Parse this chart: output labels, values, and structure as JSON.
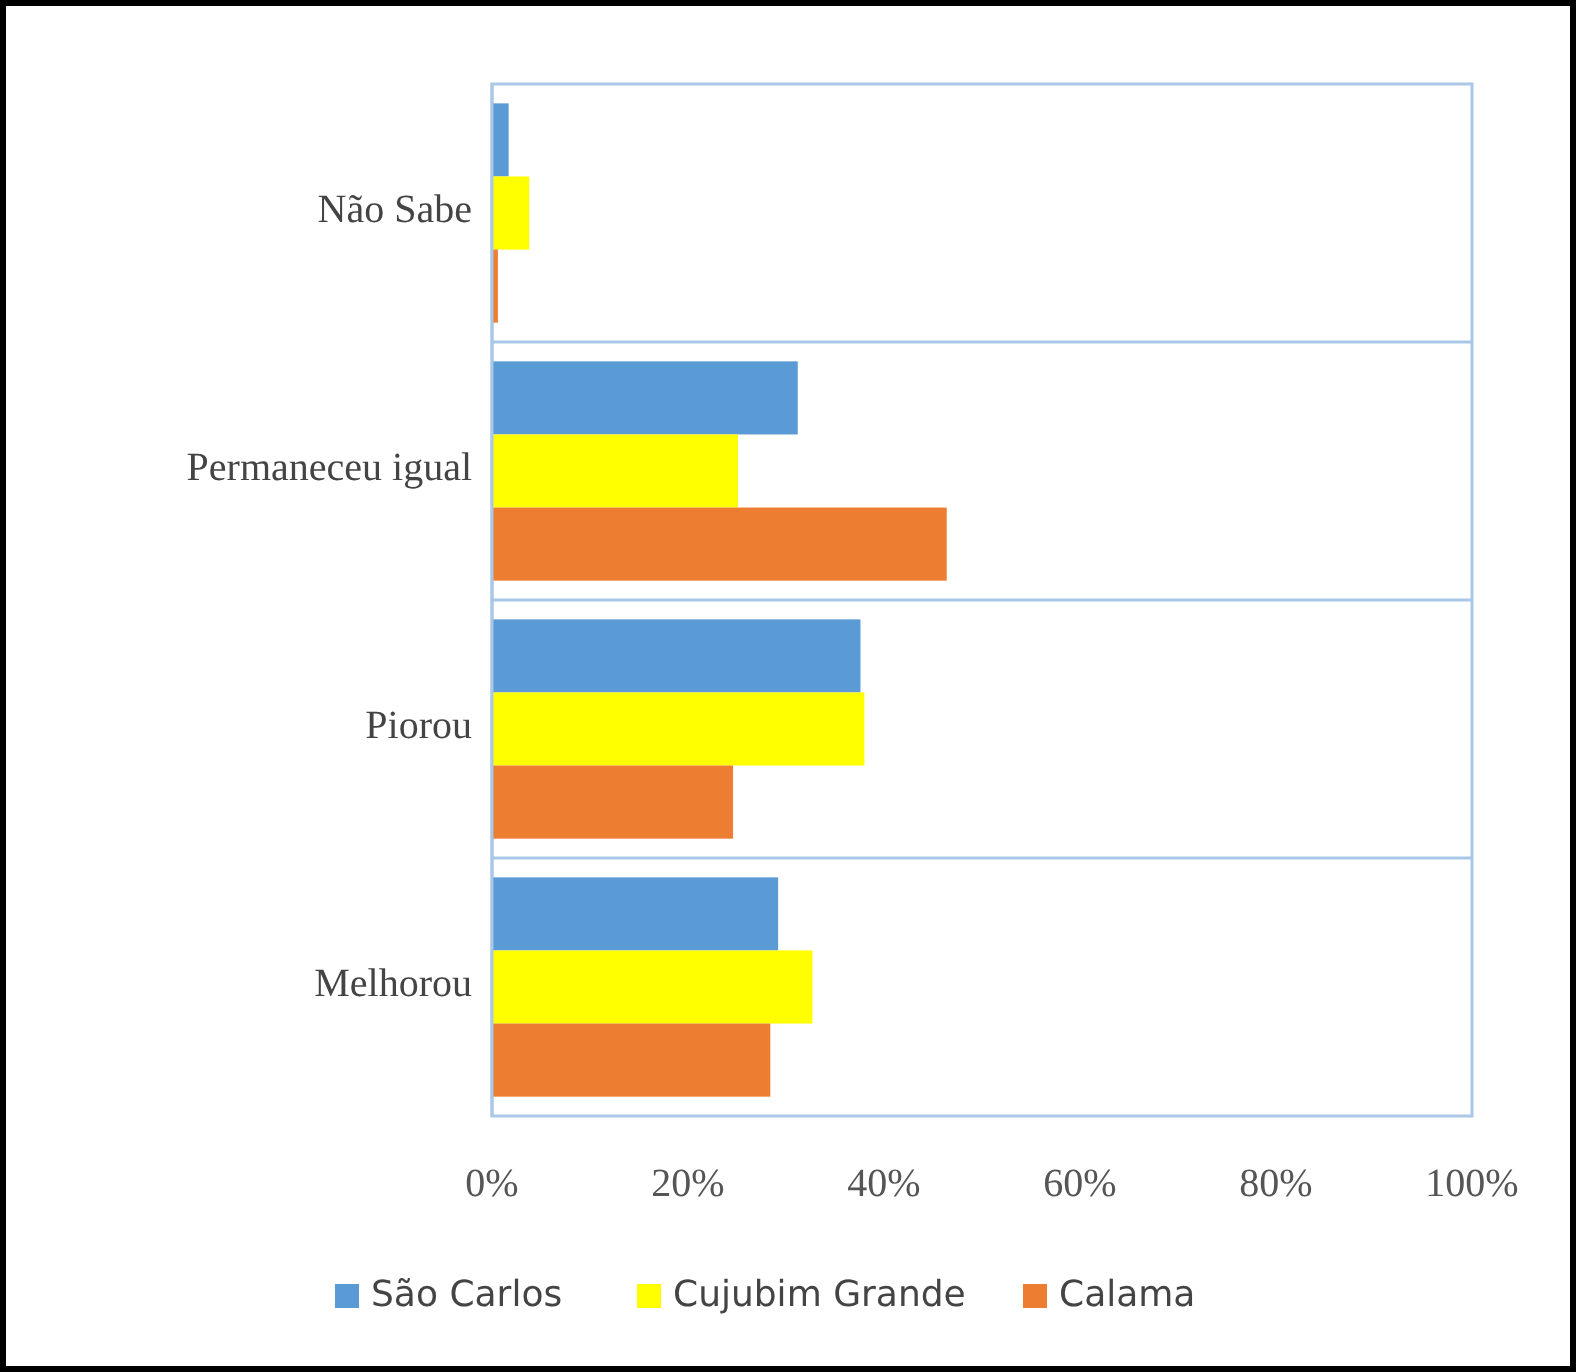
{
  "chart_data": {
    "type": "bar",
    "orientation": "horizontal",
    "categories": [
      "Não Sabe",
      "Permaneceu igual",
      "Piorou",
      "Melhorou"
    ],
    "series": [
      {
        "name": "São Carlos",
        "color": "#5b9bd5",
        "values": [
          1.7,
          31.2,
          37.6,
          29.2
        ]
      },
      {
        "name": "Cujubim Grande",
        "color": "#ffff00",
        "values": [
          3.8,
          25.1,
          38.0,
          32.7
        ]
      },
      {
        "name": "Calama",
        "color": "#ed7d31",
        "values": [
          0.6,
          46.4,
          24.6,
          28.4
        ]
      }
    ],
    "xlim": [
      0,
      100
    ],
    "xticks": [
      {
        "value": 0,
        "label": "0%"
      },
      {
        "value": 20,
        "label": "20%"
      },
      {
        "value": 40,
        "label": "40%"
      },
      {
        "value": 60,
        "label": "60%"
      },
      {
        "value": 80,
        "label": "80%"
      },
      {
        "value": 100,
        "label": "100%"
      }
    ],
    "grid": "y",
    "legend": "bottom"
  }
}
